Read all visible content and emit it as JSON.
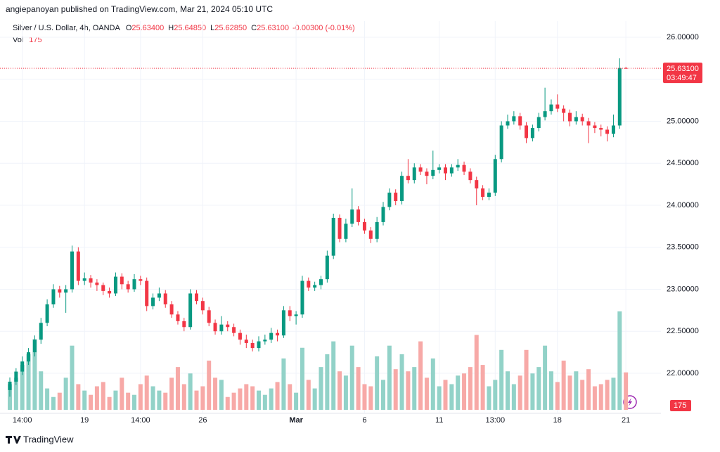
{
  "chart_data": {
    "type": "candlestick",
    "attribution": "angiepanoyan published on TradingView.com, Mar 21, 2024 05:10 UTC",
    "title": "Silver / U.S. Dollar, 4h, OANDA",
    "ohlc_legend": [
      {
        "label": "O",
        "value": "25.63400"
      },
      {
        "label": "H",
        "value": "25.64850"
      },
      {
        "label": "L",
        "value": "25.62850"
      },
      {
        "label": "C",
        "value": "25.63100"
      }
    ],
    "change": "-0.00300 (-0.01%)",
    "volume_label": "Vol",
    "last_price_label": "25.63100",
    "countdown": "03:49:47",
    "brand": "TradingView",
    "up_color": "#089981",
    "down_color": "#f23645",
    "up_volume_color": "#92d2c8",
    "down_volume_color": "#f7a9a7",
    "grid": true,
    "ylim": [
      21.506,
      26.109
    ],
    "yticks": [
      {
        "value": 22,
        "label": "22.00000"
      },
      {
        "value": 22.5,
        "label": "22.50000"
      },
      {
        "value": 23,
        "label": "23.00000"
      },
      {
        "value": 23.5,
        "label": "23.50000"
      },
      {
        "value": 24,
        "label": "24.00000"
      },
      {
        "value": 24.5,
        "label": "24.50000"
      },
      {
        "value": 25,
        "label": "25.00000"
      },
      {
        "value": 25.5,
        "label": "25.50000"
      },
      {
        "value": 26,
        "label": "26.00000"
      }
    ],
    "categories": [
      null,
      null,
      "14:00",
      null,
      null,
      null,
      null,
      null,
      null,
      null,
      null,
      null,
      "19",
      null,
      null,
      null,
      null,
      null,
      null,
      null,
      null,
      "14:00",
      null,
      null,
      null,
      null,
      null,
      null,
      null,
      null,
      null,
      "26",
      null,
      null,
      null,
      null,
      null,
      null,
      null,
      null,
      null,
      null,
      null,
      null,
      null,
      null,
      "Mar",
      null,
      null,
      null,
      null,
      null,
      null,
      null,
      null,
      null,
      null,
      "6",
      null,
      null,
      null,
      null,
      null,
      null,
      null,
      null,
      null,
      null,
      null,
      "11",
      null,
      null,
      null,
      null,
      null,
      null,
      null,
      null,
      "13:00",
      null,
      null,
      null,
      null,
      null,
      null,
      null,
      null,
      null,
      "18",
      null,
      null,
      null,
      null,
      null,
      null,
      null,
      null,
      null,
      null,
      "21"
    ],
    "candles": [
      [
        21.8,
        21.95,
        21.72,
        21.9
      ],
      [
        21.9,
        22.06,
        21.86,
        22.02
      ],
      [
        22.02,
        22.2,
        21.98,
        22.14
      ],
      [
        22.14,
        22.3,
        22.1,
        22.25
      ],
      [
        22.25,
        22.45,
        22.2,
        22.4
      ],
      [
        22.4,
        22.66,
        22.35,
        22.6
      ],
      [
        22.6,
        22.88,
        22.56,
        22.82
      ],
      [
        22.82,
        23.06,
        22.78,
        23.0
      ],
      [
        23.0,
        23.04,
        22.9,
        22.96
      ],
      [
        22.96,
        23.05,
        22.72,
        23.0
      ],
      [
        23.0,
        23.52,
        22.96,
        23.45
      ],
      [
        23.45,
        23.5,
        23.05,
        23.1
      ],
      [
        23.1,
        23.2,
        23.05,
        23.13
      ],
      [
        23.13,
        23.17,
        23.02,
        23.08
      ],
      [
        23.08,
        23.12,
        22.98,
        23.05
      ],
      [
        23.05,
        23.08,
        22.93,
        22.98
      ],
      [
        22.98,
        23.02,
        22.9,
        22.95
      ],
      [
        22.95,
        23.2,
        22.92,
        23.15
      ],
      [
        23.15,
        23.19,
        23.0,
        23.06
      ],
      [
        23.06,
        23.1,
        22.96,
        23.0
      ],
      [
        23.0,
        23.18,
        22.97,
        23.12
      ],
      [
        23.12,
        23.16,
        23.05,
        23.1
      ],
      [
        23.1,
        23.14,
        22.74,
        22.8
      ],
      [
        22.8,
        22.95,
        22.76,
        22.9
      ],
      [
        22.9,
        23.02,
        22.86,
        22.95
      ],
      [
        22.95,
        22.99,
        22.78,
        22.82
      ],
      [
        22.82,
        22.86,
        22.66,
        22.7
      ],
      [
        22.7,
        22.74,
        22.58,
        22.62
      ],
      [
        22.62,
        22.66,
        22.5,
        22.55
      ],
      [
        22.55,
        23.0,
        22.52,
        22.95
      ],
      [
        22.95,
        22.99,
        22.82,
        22.86
      ],
      [
        22.86,
        22.9,
        22.7,
        22.75
      ],
      [
        22.75,
        22.79,
        22.56,
        22.6
      ],
      [
        22.6,
        22.64,
        22.46,
        22.5
      ],
      [
        22.5,
        22.68,
        22.46,
        22.58
      ],
      [
        22.58,
        22.62,
        22.5,
        22.55
      ],
      [
        22.55,
        22.59,
        22.44,
        22.48
      ],
      [
        22.48,
        22.52,
        22.34,
        22.4
      ],
      [
        22.4,
        22.46,
        22.3,
        22.36
      ],
      [
        22.36,
        22.4,
        22.26,
        22.3
      ],
      [
        22.3,
        22.44,
        22.26,
        22.38
      ],
      [
        22.38,
        22.46,
        22.34,
        22.4
      ],
      [
        22.4,
        22.54,
        22.36,
        22.48
      ],
      [
        22.48,
        22.52,
        22.38,
        22.45
      ],
      [
        22.45,
        22.8,
        22.42,
        22.75
      ],
      [
        22.75,
        22.8,
        22.62,
        22.68
      ],
      [
        22.68,
        22.74,
        22.58,
        22.7
      ],
      [
        22.7,
        23.16,
        22.66,
        23.1
      ],
      [
        23.1,
        23.14,
        22.98,
        23.02
      ],
      [
        23.02,
        23.09,
        22.98,
        23.05
      ],
      [
        23.05,
        23.16,
        23.0,
        23.12
      ],
      [
        23.12,
        23.46,
        23.08,
        23.4
      ],
      [
        23.4,
        23.9,
        23.36,
        23.85
      ],
      [
        23.85,
        23.89,
        23.56,
        23.6
      ],
      [
        23.6,
        23.84,
        23.56,
        23.78
      ],
      [
        23.78,
        24.2,
        23.74,
        23.95
      ],
      [
        23.95,
        23.99,
        23.76,
        23.8
      ],
      [
        23.8,
        23.84,
        23.66,
        23.7
      ],
      [
        23.7,
        23.74,
        23.55,
        23.6
      ],
      [
        23.6,
        23.86,
        23.56,
        23.8
      ],
      [
        23.8,
        24.04,
        23.76,
        23.98
      ],
      [
        23.98,
        24.2,
        23.94,
        24.15
      ],
      [
        24.15,
        24.19,
        24.0,
        24.05
      ],
      [
        24.05,
        24.4,
        24.01,
        24.35
      ],
      [
        24.35,
        24.55,
        24.26,
        24.3
      ],
      [
        24.3,
        24.5,
        24.26,
        24.45
      ],
      [
        24.45,
        24.49,
        24.36,
        24.4
      ],
      [
        24.4,
        24.44,
        24.25,
        24.35
      ],
      [
        24.35,
        24.65,
        24.31,
        24.42
      ],
      [
        24.42,
        24.49,
        24.38,
        24.45
      ],
      [
        24.45,
        24.49,
        24.3,
        24.38
      ],
      [
        24.38,
        24.49,
        24.34,
        24.45
      ],
      [
        24.45,
        24.55,
        24.41,
        24.48
      ],
      [
        24.48,
        24.52,
        24.36,
        24.4
      ],
      [
        24.4,
        24.44,
        24.26,
        24.3
      ],
      [
        24.3,
        24.34,
        24.0,
        24.2
      ],
      [
        24.2,
        24.24,
        24.06,
        24.1
      ],
      [
        24.1,
        24.2,
        24.06,
        24.15
      ],
      [
        24.15,
        24.6,
        24.11,
        24.55
      ],
      [
        24.55,
        25.0,
        24.51,
        24.95
      ],
      [
        24.95,
        25.08,
        24.91,
        25.0
      ],
      [
        25.0,
        25.12,
        24.96,
        25.06
      ],
      [
        25.06,
        25.1,
        24.9,
        24.95
      ],
      [
        24.95,
        24.99,
        24.74,
        24.8
      ],
      [
        24.8,
        24.96,
        24.76,
        24.92
      ],
      [
        24.92,
        25.1,
        24.88,
        25.05
      ],
      [
        25.05,
        25.4,
        25.01,
        25.12
      ],
      [
        25.12,
        25.26,
        25.08,
        25.2
      ],
      [
        25.2,
        25.32,
        25.11,
        25.15
      ],
      [
        25.15,
        25.19,
        25.0,
        25.1
      ],
      [
        25.1,
        25.14,
        24.94,
        25.0
      ],
      [
        25.0,
        25.12,
        24.96,
        25.05
      ],
      [
        25.05,
        25.09,
        24.95,
        25.0
      ],
      [
        25.0,
        25.04,
        24.74,
        24.95
      ],
      [
        24.95,
        24.99,
        24.86,
        24.92
      ],
      [
        24.92,
        24.96,
        24.82,
        24.9
      ],
      [
        24.9,
        24.94,
        24.76,
        24.85
      ],
      [
        24.85,
        25.08,
        24.81,
        24.95
      ],
      [
        24.95,
        25.75,
        24.91,
        25.634
      ],
      [
        25.634,
        25.6485,
        25.6285,
        25.631
      ]
    ],
    "volume": [
      120,
      150,
      210,
      260,
      330,
      180,
      100,
      60,
      80,
      150,
      300,
      120,
      90,
      70,
      110,
      130,
      60,
      90,
      150,
      80,
      70,
      120,
      160,
      110,
      90,
      80,
      150,
      200,
      120,
      170,
      90,
      110,
      230,
      150,
      140,
      60,
      80,
      100,
      120,
      110,
      90,
      70,
      100,
      130,
      240,
      120,
      80,
      290,
      140,
      100,
      200,
      260,
      320,
      180,
      160,
      300,
      200,
      120,
      110,
      250,
      140,
      300,
      190,
      260,
      180,
      200,
      320,
      150,
      240,
      110,
      140,
      120,
      160,
      170,
      200,
      350,
      210,
      110,
      140,
      280,
      180,
      120,
      160,
      280,
      170,
      200,
      300,
      180,
      130,
      230,
      160,
      180,
      140,
      190,
      110,
      120,
      140,
      150,
      460,
      175
    ]
  }
}
